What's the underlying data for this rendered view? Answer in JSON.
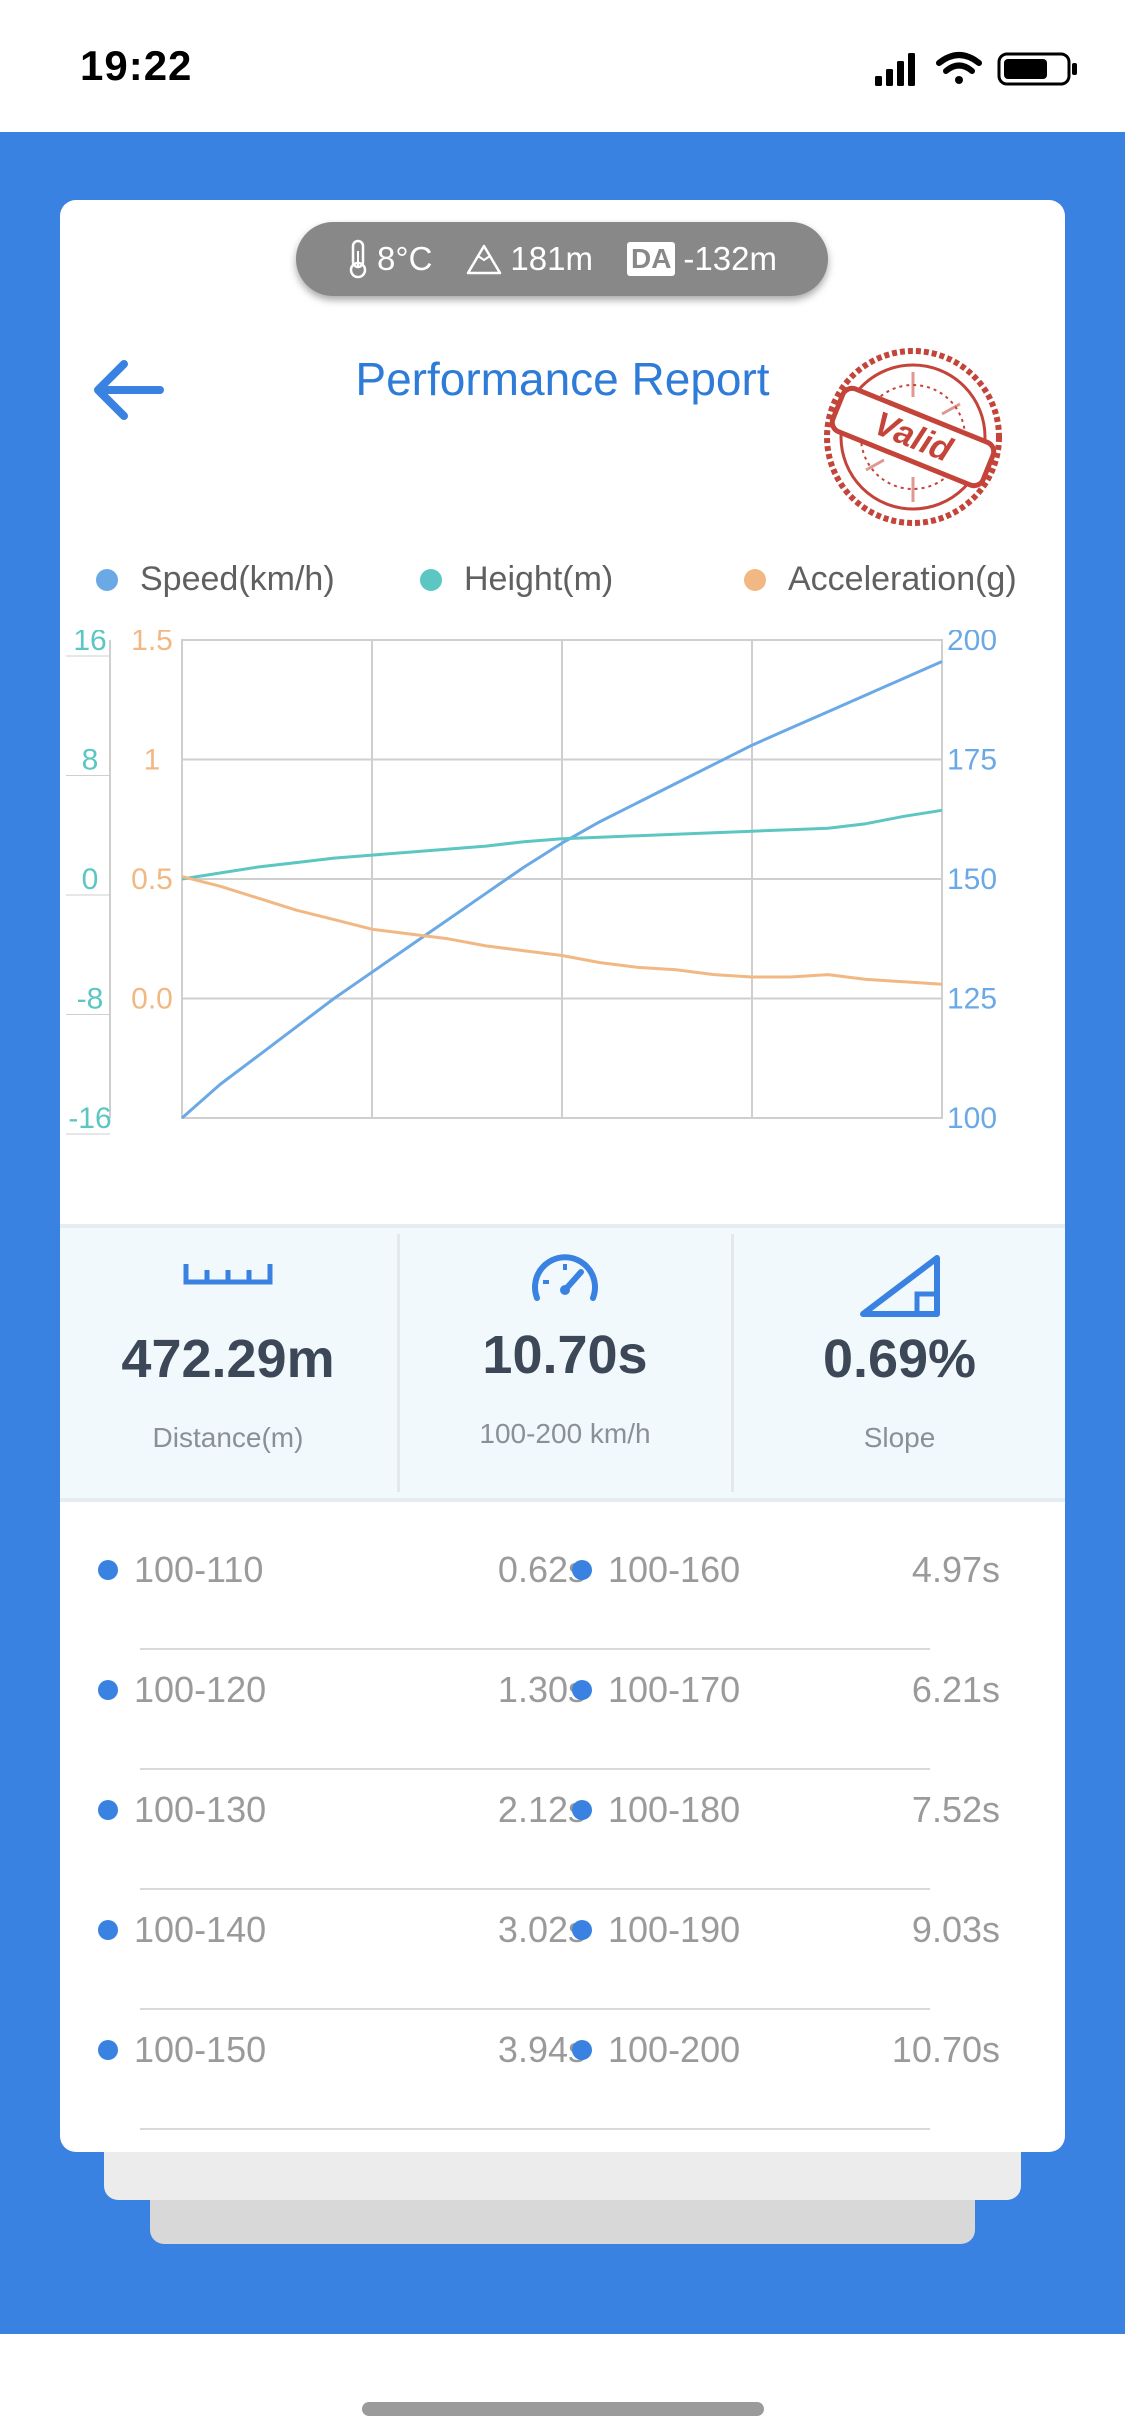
{
  "status_bar": {
    "time": "19:22"
  },
  "environment": {
    "temperature": "8°C",
    "altitude": "181m",
    "da_label": "DA",
    "density_altitude": "-132m"
  },
  "header": {
    "title": "Performance Report",
    "stamp_text": "Valid"
  },
  "legend": {
    "speed": "Speed(km/h)",
    "height": "Height(m)",
    "acceleration": "Acceleration(g)"
  },
  "colors": {
    "speed": "#6aa9e6",
    "height": "#5cc6c2",
    "acceleration": "#f2b884",
    "accent": "#3a82e2",
    "stamp": "#c5443a"
  },
  "chart_data": {
    "type": "line",
    "grid": true,
    "x": [
      0,
      1,
      2,
      3,
      4,
      5,
      6,
      7,
      8,
      9,
      10,
      11,
      12,
      13,
      14,
      15,
      16,
      17,
      18,
      19,
      20
    ],
    "axes": {
      "height": {
        "ticks": [
          "16",
          "8",
          "0",
          "-8",
          "-16"
        ],
        "range": [
          -16,
          16
        ]
      },
      "acceleration": {
        "ticks": [
          "1.5",
          "1",
          "0.5",
          "0.0"
        ],
        "range": [
          -0.5,
          1.5
        ]
      },
      "speed": {
        "ticks": [
          "200",
          "175",
          "150",
          "125",
          "100"
        ],
        "range": [
          100,
          200
        ]
      }
    },
    "series": [
      {
        "name": "Speed(km/h)",
        "axis": "speed",
        "values": [
          100,
          107,
          113,
          119,
          125,
          130.5,
          136,
          141.5,
          147,
          152.5,
          157.5,
          162,
          166,
          170,
          174,
          178,
          181.5,
          185,
          188.5,
          192,
          195.5
        ]
      },
      {
        "name": "Height(m)",
        "axis": "height",
        "values": [
          0,
          0.4,
          0.8,
          1.1,
          1.4,
          1.6,
          1.8,
          2.0,
          2.2,
          2.5,
          2.7,
          2.8,
          2.9,
          3.0,
          3.1,
          3.2,
          3.3,
          3.4,
          3.7,
          4.2,
          4.6
        ]
      },
      {
        "name": "Acceleration(g)",
        "axis": "acceleration",
        "values": [
          0.51,
          0.47,
          0.42,
          0.37,
          0.33,
          0.29,
          0.27,
          0.25,
          0.22,
          0.2,
          0.18,
          0.15,
          0.13,
          0.12,
          0.1,
          0.09,
          0.09,
          0.1,
          0.08,
          0.07,
          0.06
        ]
      }
    ]
  },
  "stats": {
    "distance_value": "472.29m",
    "distance_label": "Distance(m)",
    "time_value": "10.70s",
    "time_label": "100-200 km/h",
    "slope_value": "0.69%",
    "slope_label": "Slope"
  },
  "splits": [
    {
      "left_range": "100-110",
      "left_time": "0.62s",
      "right_range": "100-160",
      "right_time": "4.97s"
    },
    {
      "left_range": "100-120",
      "left_time": "1.30s",
      "right_range": "100-170",
      "right_time": "6.21s"
    },
    {
      "left_range": "100-130",
      "left_time": "2.12s",
      "right_range": "100-180",
      "right_time": "7.52s"
    },
    {
      "left_range": "100-140",
      "left_time": "3.02s",
      "right_range": "100-190",
      "right_time": "9.03s"
    },
    {
      "left_range": "100-150",
      "left_time": "3.94s",
      "right_range": "100-200",
      "right_time": "10.70s"
    }
  ]
}
